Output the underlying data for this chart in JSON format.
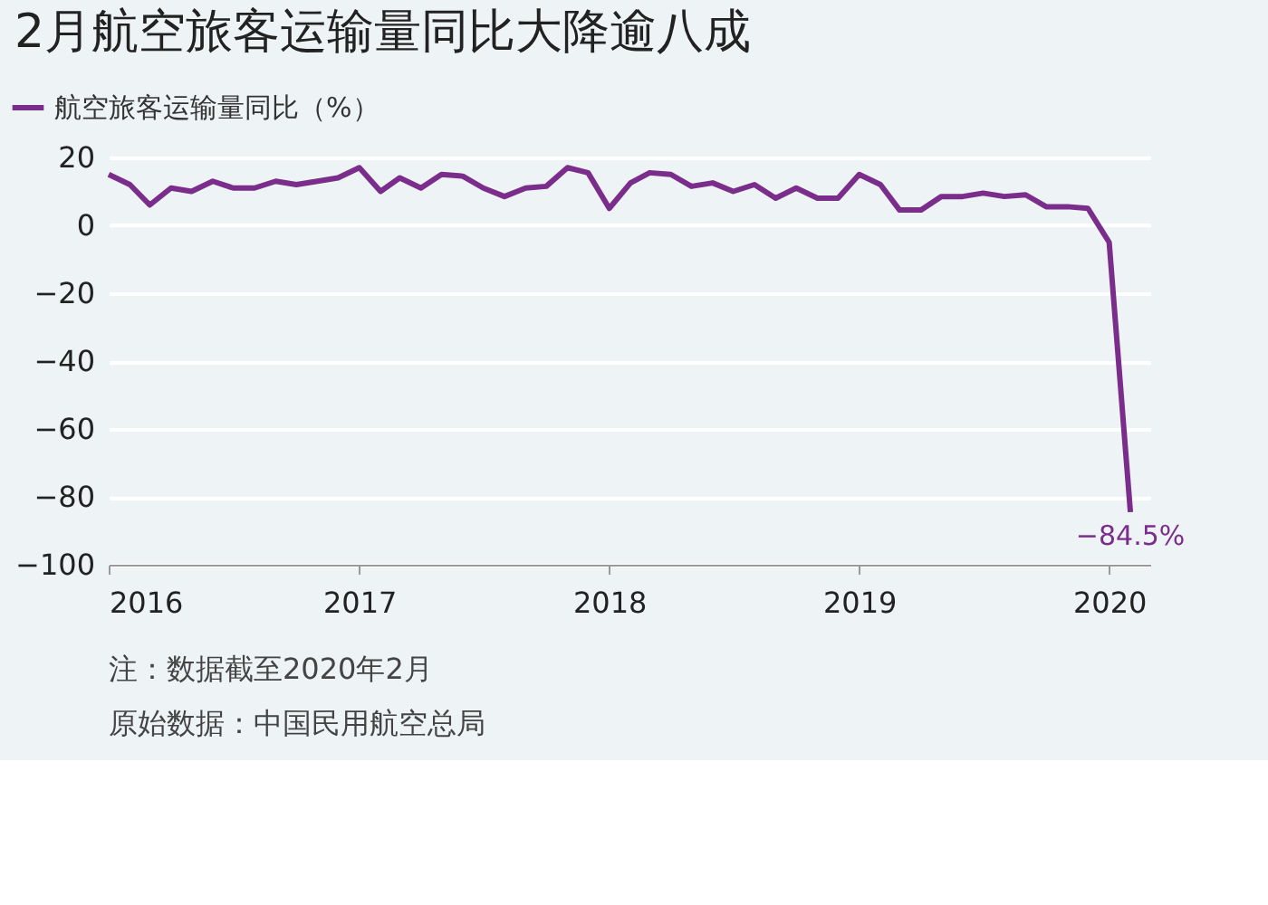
{
  "chart_data": {
    "type": "line",
    "title": "2月航空旅客运输量同比大降逾八成",
    "x": [
      "2016-01",
      "2016-02",
      "2016-03",
      "2016-04",
      "2016-05",
      "2016-06",
      "2016-07",
      "2016-08",
      "2016-09",
      "2016-10",
      "2016-11",
      "2016-12",
      "2017-01",
      "2017-02",
      "2017-03",
      "2017-04",
      "2017-05",
      "2017-06",
      "2017-07",
      "2017-08",
      "2017-09",
      "2017-10",
      "2017-11",
      "2017-12",
      "2018-01",
      "2018-02",
      "2018-03",
      "2018-04",
      "2018-05",
      "2018-06",
      "2018-07",
      "2018-08",
      "2018-09",
      "2018-10",
      "2018-11",
      "2018-12",
      "2019-01",
      "2019-02",
      "2019-03",
      "2019-04",
      "2019-05",
      "2019-06",
      "2019-07",
      "2019-08",
      "2019-09",
      "2019-10",
      "2019-11",
      "2019-12",
      "2020-01",
      "2020-02"
    ],
    "series": [
      {
        "name": "航空旅客运输量同比（%）",
        "color": "#7b2d8b",
        "values": [
          15,
          12,
          6,
          11,
          10,
          13,
          11,
          11,
          13,
          12,
          13,
          14,
          17,
          10,
          14,
          11,
          15,
          14.5,
          11,
          8.5,
          11,
          11.5,
          17,
          15.5,
          5,
          12.5,
          15.5,
          15,
          11.5,
          12.5,
          10,
          12,
          8,
          11,
          8,
          8,
          15,
          12,
          4.5,
          4.5,
          8.5,
          8.5,
          9.5,
          8.5,
          9,
          5.5,
          5.5,
          5,
          -5,
          -84.5
        ]
      }
    ],
    "xlim": [
      "2016-01",
      "2020-03"
    ],
    "xticks": [
      {
        "value": "2016-01",
        "label": "2016"
      },
      {
        "value": "2017-01",
        "label": "2017"
      },
      {
        "value": "2018-01",
        "label": "2018"
      },
      {
        "value": "2019-01",
        "label": "2019"
      },
      {
        "value": "2020-01",
        "label": "2020"
      }
    ],
    "ylim": [
      -100,
      20
    ],
    "yticks": [
      -100,
      -80,
      -60,
      -40,
      -20,
      0,
      20
    ],
    "grid": "y",
    "legend": "top left",
    "marker": "none",
    "line_style": "solid",
    "annotations": [
      {
        "text": "−84.5%",
        "x": "2020-02",
        "y": -84.5
      },
      "注：数据截至2020年2月",
      "原始数据：中国民用航空总局"
    ]
  }
}
